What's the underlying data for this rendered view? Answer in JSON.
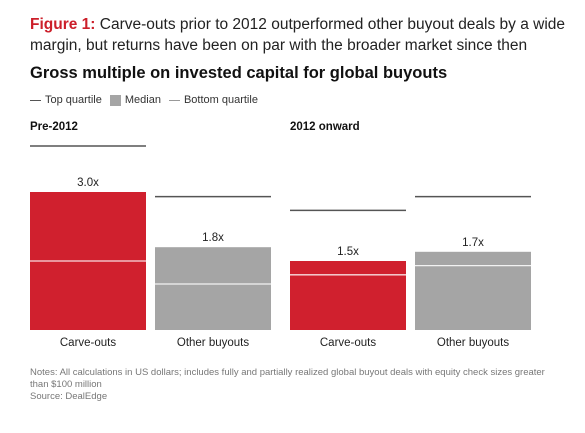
{
  "figure": {
    "label": "Figure 1:",
    "title": "Carve-outs prior to 2012 outperformed other buyout deals by a wide margin, but returns have been on par with the broader market since then"
  },
  "legend": {
    "top": "Top quartile",
    "median": "Median",
    "bottom": "Bottom quartile"
  },
  "notes": {
    "line1": "Notes: All calculations in US dollars; includes fully and partially realized global buyout deals with equity check sizes greater than $100 million",
    "line2": "Source: DealEdge"
  },
  "colors": {
    "carve_out": "#d0202e",
    "other": "#a5a5a5",
    "quartile_line": "#555555"
  },
  "chart_data": {
    "type": "bar",
    "title": "Gross multiple on invested capital for global buyouts",
    "ylim": [
      0,
      4.0
    ],
    "panels": [
      {
        "label": "Pre-2012",
        "categories": [
          "Carve-outs",
          "Other buyouts"
        ],
        "median": [
          3.0,
          1.8
        ],
        "median_labels": [
          "3.0x",
          "1.8x"
        ],
        "top_quartile": [
          4.0,
          2.9
        ],
        "bottom_quartile": [
          1.5,
          1.0
        ]
      },
      {
        "label": "2012 onward",
        "categories": [
          "Carve-outs",
          "Other buyouts"
        ],
        "median": [
          1.5,
          1.7
        ],
        "median_labels": [
          "1.5x",
          "1.7x"
        ],
        "top_quartile": [
          2.6,
          2.9
        ],
        "bottom_quartile": [
          1.2,
          1.4
        ]
      }
    ]
  }
}
